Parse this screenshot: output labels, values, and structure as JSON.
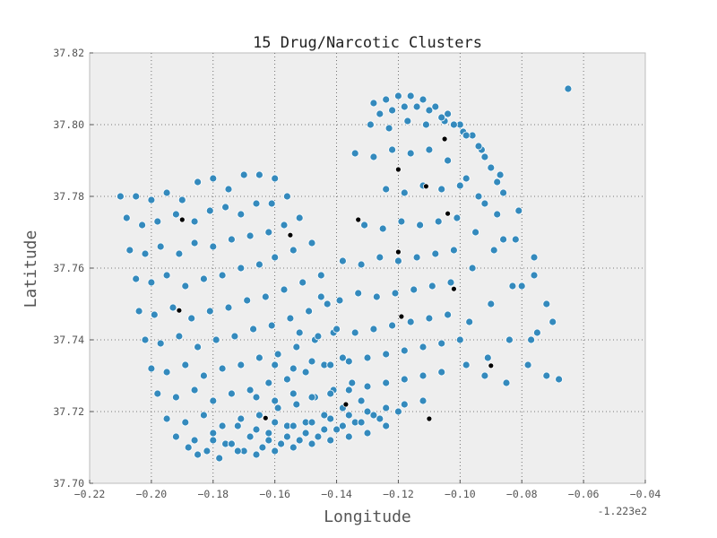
{
  "chart_data": {
    "type": "scatter",
    "title": "15 Drug/Narcotic Clusters",
    "xlabel": "Longitude",
    "ylabel": "Latitude",
    "x_offset_label": "-1.223e2",
    "xlim": [
      -0.22,
      -0.04
    ],
    "ylim": [
      37.7,
      37.82
    ],
    "xticks": [
      "−0.22",
      "−0.20",
      "−0.18",
      "−0.16",
      "−0.14",
      "−0.12",
      "−0.10",
      "−0.08",
      "−0.06",
      "−0.04"
    ],
    "yticks": [
      "37.70",
      "37.72",
      "37.74",
      "37.76",
      "37.78",
      "37.80",
      "37.82"
    ],
    "grid": true,
    "colors": {
      "points": "#348ABD",
      "centroids": "#000000",
      "background": "#EEEEEE"
    },
    "series": [
      {
        "role": "incidents",
        "x": [
          -0.21,
          -0.205,
          -0.2,
          -0.195,
          -0.19,
          -0.185,
          -0.18,
          -0.175,
          -0.17,
          -0.165,
          -0.16,
          -0.208,
          -0.203,
          -0.198,
          -0.192,
          -0.186,
          -0.181,
          -0.176,
          -0.171,
          -0.166,
          -0.161,
          -0.156,
          -0.207,
          -0.202,
          -0.197,
          -0.191,
          -0.186,
          -0.18,
          -0.174,
          -0.168,
          -0.162,
          -0.157,
          -0.152,
          -0.205,
          -0.2,
          -0.195,
          -0.189,
          -0.183,
          -0.177,
          -0.171,
          -0.165,
          -0.16,
          -0.154,
          -0.148,
          -0.204,
          -0.199,
          -0.193,
          -0.187,
          -0.181,
          -0.175,
          -0.169,
          -0.163,
          -0.157,
          -0.151,
          -0.145,
          -0.202,
          -0.197,
          -0.191,
          -0.185,
          -0.179,
          -0.173,
          -0.167,
          -0.161,
          -0.155,
          -0.149,
          -0.143,
          -0.2,
          -0.195,
          -0.189,
          -0.183,
          -0.177,
          -0.171,
          -0.165,
          -0.159,
          -0.153,
          -0.147,
          -0.141,
          -0.198,
          -0.192,
          -0.186,
          -0.18,
          -0.174,
          -0.168,
          -0.162,
          -0.156,
          -0.15,
          -0.144,
          -0.138,
          -0.195,
          -0.189,
          -0.183,
          -0.177,
          -0.171,
          -0.165,
          -0.159,
          -0.153,
          -0.147,
          -0.141,
          -0.135,
          -0.192,
          -0.186,
          -0.18,
          -0.174,
          -0.168,
          -0.162,
          -0.156,
          -0.15,
          -0.144,
          -0.138,
          -0.132,
          -0.188,
          -0.182,
          -0.176,
          -0.17,
          -0.164,
          -0.158,
          -0.152,
          -0.146,
          -0.14,
          -0.134,
          -0.128,
          -0.185,
          -0.178,
          -0.172,
          -0.166,
          -0.16,
          -0.154,
          -0.148,
          -0.142,
          -0.136,
          -0.13,
          -0.124,
          -0.18,
          -0.174,
          -0.168,
          -0.162,
          -0.156,
          -0.15,
          -0.144,
          -0.138,
          -0.132,
          -0.126,
          -0.12,
          -0.172,
          -0.166,
          -0.16,
          -0.154,
          -0.148,
          -0.142,
          -0.136,
          -0.13,
          -0.124,
          -0.118,
          -0.112,
          -0.166,
          -0.16,
          -0.154,
          -0.148,
          -0.142,
          -0.136,
          -0.13,
          -0.124,
          -0.118,
          -0.112,
          -0.106,
          -0.16,
          -0.154,
          -0.148,
          -0.142,
          -0.136,
          -0.13,
          -0.124,
          -0.118,
          -0.112,
          -0.106,
          -0.1,
          -0.152,
          -0.146,
          -0.14,
          -0.134,
          -0.128,
          -0.122,
          -0.116,
          -0.11,
          -0.104,
          -0.098,
          -0.092,
          -0.145,
          -0.139,
          -0.133,
          -0.127,
          -0.121,
          -0.115,
          -0.109,
          -0.103,
          -0.097,
          -0.091,
          -0.085,
          -0.138,
          -0.132,
          -0.126,
          -0.12,
          -0.114,
          -0.108,
          -0.102,
          -0.096,
          -0.09,
          -0.084,
          -0.078,
          -0.131,
          -0.125,
          -0.119,
          -0.113,
          -0.107,
          -0.101,
          -0.095,
          -0.089,
          -0.083,
          -0.077,
          -0.072,
          -0.124,
          -0.118,
          -0.112,
          -0.106,
          -0.1,
          -0.094,
          -0.088,
          -0.082,
          -0.076,
          -0.07,
          -0.068,
          -0.134,
          -0.128,
          -0.122,
          -0.116,
          -0.11,
          -0.104,
          -0.098,
          -0.092,
          -0.086,
          -0.08,
          -0.075,
          -0.129,
          -0.123,
          -0.117,
          -0.111,
          -0.105,
          -0.099,
          -0.093,
          -0.087,
          -0.081,
          -0.076,
          -0.072,
          -0.128,
          -0.124,
          -0.12,
          -0.116,
          -0.112,
          -0.108,
          -0.104,
          -0.1,
          -0.096,
          -0.092,
          -0.088,
          -0.126,
          -0.122,
          -0.118,
          -0.114,
          -0.11,
          -0.106,
          -0.102,
          -0.098,
          -0.094,
          -0.09,
          -0.086,
          -0.065
        ],
        "y": [
          37.78,
          37.78,
          37.779,
          37.781,
          37.779,
          37.784,
          37.785,
          37.782,
          37.786,
          37.786,
          37.785,
          37.774,
          37.772,
          37.773,
          37.775,
          37.773,
          37.776,
          37.777,
          37.775,
          37.778,
          37.778,
          37.78,
          37.765,
          37.764,
          37.766,
          37.764,
          37.767,
          37.766,
          37.768,
          37.769,
          37.77,
          37.772,
          37.774,
          37.757,
          37.756,
          37.758,
          37.755,
          37.757,
          37.758,
          37.76,
          37.761,
          37.763,
          37.765,
          37.767,
          37.748,
          37.747,
          37.749,
          37.746,
          37.748,
          37.749,
          37.751,
          37.752,
          37.754,
          37.756,
          37.758,
          37.74,
          37.739,
          37.741,
          37.738,
          37.74,
          37.741,
          37.743,
          37.744,
          37.746,
          37.748,
          37.75,
          37.732,
          37.731,
          37.733,
          37.73,
          37.732,
          37.733,
          37.735,
          37.736,
          37.738,
          37.74,
          37.742,
          37.725,
          37.724,
          37.726,
          37.723,
          37.725,
          37.726,
          37.728,
          37.729,
          37.731,
          37.733,
          37.735,
          37.718,
          37.717,
          37.719,
          37.716,
          37.718,
          37.719,
          37.721,
          37.722,
          37.724,
          37.726,
          37.728,
          37.713,
          37.712,
          37.714,
          37.711,
          37.713,
          37.714,
          37.716,
          37.717,
          37.719,
          37.721,
          37.723,
          37.71,
          37.709,
          37.711,
          37.709,
          37.71,
          37.711,
          37.712,
          37.713,
          37.715,
          37.717,
          37.719,
          37.708,
          37.707,
          37.709,
          37.708,
          37.709,
          37.71,
          37.711,
          37.712,
          37.713,
          37.714,
          37.716,
          37.712,
          37.711,
          37.713,
          37.712,
          37.713,
          37.714,
          37.715,
          37.716,
          37.717,
          37.718,
          37.72,
          37.716,
          37.715,
          37.717,
          37.716,
          37.717,
          37.718,
          37.719,
          37.72,
          37.721,
          37.722,
          37.723,
          37.724,
          37.723,
          37.725,
          37.724,
          37.725,
          37.726,
          37.727,
          37.728,
          37.729,
          37.73,
          37.731,
          37.733,
          37.732,
          37.734,
          37.733,
          37.734,
          37.735,
          37.736,
          37.737,
          37.738,
          37.739,
          37.74,
          37.742,
          37.741,
          37.743,
          37.742,
          37.743,
          37.744,
          37.745,
          37.746,
          37.747,
          37.733,
          37.73,
          37.752,
          37.751,
          37.753,
          37.752,
          37.753,
          37.754,
          37.755,
          37.756,
          37.745,
          37.735,
          37.728,
          37.762,
          37.761,
          37.763,
          37.762,
          37.763,
          37.764,
          37.765,
          37.76,
          37.75,
          37.74,
          37.733,
          37.772,
          37.771,
          37.773,
          37.772,
          37.773,
          37.774,
          37.77,
          37.765,
          37.755,
          37.74,
          37.73,
          37.782,
          37.781,
          37.783,
          37.782,
          37.783,
          37.78,
          37.775,
          37.768,
          37.758,
          37.745,
          37.729,
          37.792,
          37.791,
          37.793,
          37.792,
          37.793,
          37.79,
          37.785,
          37.778,
          37.768,
          37.755,
          37.742,
          37.8,
          37.799,
          37.801,
          37.8,
          37.801,
          37.798,
          37.793,
          37.786,
          37.776,
          37.763,
          37.75,
          37.806,
          37.807,
          37.808,
          37.808,
          37.807,
          37.805,
          37.803,
          37.8,
          37.797,
          37.791,
          37.784,
          37.803,
          37.804,
          37.805,
          37.805,
          37.804,
          37.802,
          37.8,
          37.797,
          37.794,
          37.788,
          37.781,
          37.81
        ]
      },
      {
        "role": "cluster-centers",
        "x": [
          -0.19,
          -0.191,
          -0.163,
          -0.155,
          -0.137,
          -0.133,
          -0.12,
          -0.119,
          -0.111,
          -0.11,
          -0.105,
          -0.104,
          -0.102,
          -0.09,
          -0.12
        ],
        "y": [
          37.7735,
          37.7482,
          37.7182,
          37.7692,
          37.722,
          37.7735,
          37.7875,
          37.7465,
          37.7828,
          37.718,
          37.796,
          37.7752,
          37.7542,
          37.7328,
          37.7645
        ]
      }
    ]
  }
}
